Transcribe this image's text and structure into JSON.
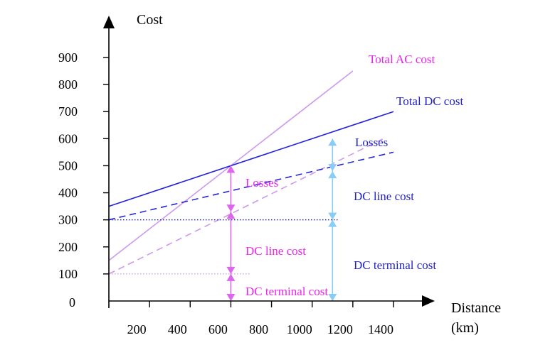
{
  "chart_data": {
    "type": "line",
    "ylabel": "Cost",
    "xlabel_line1": "Distance",
    "xlabel_line2": "(km)",
    "xlim": [
      0,
      1400
    ],
    "ylim": [
      0,
      900
    ],
    "x_ticks": [
      200,
      400,
      600,
      800,
      1000,
      1200,
      1400
    ],
    "y_ticks": [
      0,
      100,
      200,
      300,
      400,
      500,
      600,
      700,
      800,
      900
    ],
    "colors": {
      "axis": "#000000",
      "ac": "#cc99ee",
      "dc": "#2222dd",
      "ac_annot": "#dd66ee",
      "dc_annot": "#88ccf8",
      "magenta_text": "#ee22ee",
      "blue_text": "#2222cc"
    },
    "series": [
      {
        "name": "Total AC cost",
        "x": [
          0,
          1200
        ],
        "y": [
          150,
          850
        ],
        "style": "solid",
        "color_key": "ac"
      },
      {
        "name": "Total DC cost",
        "x": [
          0,
          1400
        ],
        "y": [
          350,
          700
        ],
        "style": "solid",
        "color_key": "dc"
      },
      {
        "x": [
          0,
          1350
        ],
        "y": [
          100,
          600
        ],
        "style": "dashed",
        "color_key": "ac"
      },
      {
        "x": [
          0,
          1400
        ],
        "y": [
          300,
          550
        ],
        "style": "dashed",
        "color_key": "dc"
      },
      {
        "x": [
          0,
          700
        ],
        "y": [
          100,
          100
        ],
        "style": "dotted",
        "color_key": "ac"
      },
      {
        "x": [
          0,
          1125
        ],
        "y": [
          300,
          300
        ],
        "style": "dotted",
        "color_key": "dc"
      }
    ],
    "annotations": {
      "ac_arrow_x": 600,
      "ac_segments": [
        [
          0,
          100
        ],
        [
          100,
          330
        ],
        [
          330,
          500
        ]
      ],
      "dc_arrow_x": 1100,
      "dc_segments": [
        [
          0,
          300
        ],
        [
          300,
          480
        ],
        [
          480,
          600
        ]
      ],
      "labels": {
        "total_ac": "Total AC cost",
        "total_dc": "Total DC cost",
        "dc_losses": "Losses",
        "ac_losses": "Losses",
        "dc_line_cost": "DC line cost",
        "ac_line_cost": "DC line cost",
        "dc_terminal_cost": "DC terminal cost",
        "ac_terminal_cost": "DC terminal cost"
      }
    }
  }
}
